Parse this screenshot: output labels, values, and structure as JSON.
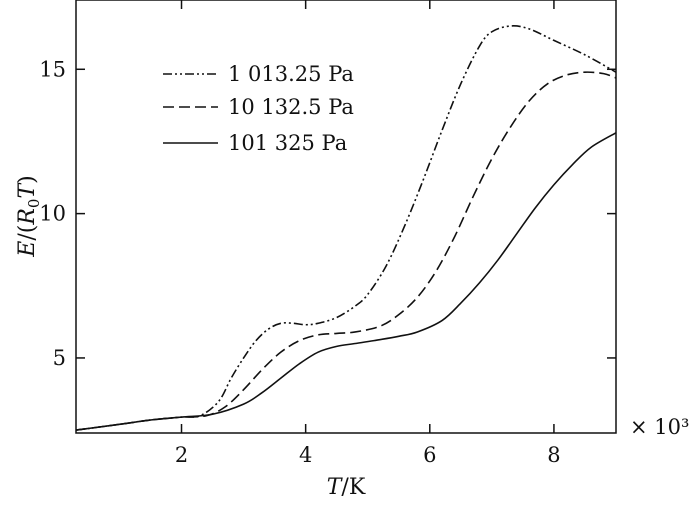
{
  "chart_data": {
    "type": "line",
    "title": "",
    "xlabel": "T/K",
    "ylabel": "E/(R0T)",
    "x_multiplier": "× 10³",
    "xlim": [
      0.3,
      9.0
    ],
    "ylim": [
      2.4,
      17.4
    ],
    "x_ticks": [
      2,
      4,
      6,
      8
    ],
    "x_tick_labels": [
      "2",
      "4",
      "6",
      "8"
    ],
    "y_ticks": [
      5,
      10,
      15
    ],
    "y_tick_labels": [
      "5",
      "10",
      "15"
    ],
    "grid": false,
    "legend_position": "top-left",
    "series": [
      {
        "name": "1 013.25 Pa",
        "style": "dash-dot-dot",
        "x": [
          0.3,
          1.0,
          1.5,
          2.0,
          2.3,
          2.6,
          2.8,
          3.0,
          3.2,
          3.4,
          3.6,
          3.8,
          4.0,
          4.2,
          4.5,
          4.8,
          5.0,
          5.3,
          5.6,
          5.9,
          6.2,
          6.5,
          6.8,
          7.0,
          7.3,
          7.6,
          8.0,
          8.5,
          9.0
        ],
        "y": [
          2.5,
          2.7,
          2.85,
          2.95,
          3.0,
          3.5,
          4.3,
          5.0,
          5.6,
          6.0,
          6.2,
          6.2,
          6.15,
          6.2,
          6.4,
          6.8,
          7.2,
          8.2,
          9.6,
          11.2,
          12.9,
          14.5,
          15.8,
          16.3,
          16.5,
          16.4,
          16.0,
          15.5,
          14.9
        ]
      },
      {
        "name": "10 132.5 Pa",
        "style": "dashed",
        "x": [
          0.3,
          1.0,
          1.5,
          2.0,
          2.4,
          2.7,
          3.0,
          3.3,
          3.6,
          3.9,
          4.2,
          4.5,
          4.8,
          5.2,
          5.5,
          5.8,
          6.1,
          6.4,
          6.7,
          7.0,
          7.3,
          7.6,
          7.9,
          8.2,
          8.5,
          8.8,
          9.0
        ],
        "y": [
          2.5,
          2.7,
          2.85,
          2.95,
          3.0,
          3.3,
          3.9,
          4.6,
          5.2,
          5.6,
          5.8,
          5.85,
          5.9,
          6.1,
          6.5,
          7.1,
          8.0,
          9.2,
          10.6,
          11.9,
          13.0,
          13.9,
          14.5,
          14.8,
          14.9,
          14.85,
          14.7
        ]
      },
      {
        "name": "101 325 Pa",
        "style": "solid",
        "x": [
          0.3,
          1.0,
          1.5,
          2.0,
          2.5,
          3.0,
          3.3,
          3.6,
          3.9,
          4.2,
          4.5,
          4.8,
          5.1,
          5.5,
          5.8,
          6.2,
          6.5,
          6.8,
          7.1,
          7.4,
          7.7,
          8.0,
          8.3,
          8.6,
          9.0
        ],
        "y": [
          2.5,
          2.7,
          2.85,
          2.95,
          3.05,
          3.4,
          3.8,
          4.3,
          4.8,
          5.2,
          5.4,
          5.5,
          5.6,
          5.75,
          5.9,
          6.3,
          6.9,
          7.6,
          8.4,
          9.3,
          10.2,
          11.0,
          11.7,
          12.3,
          12.8
        ]
      }
    ]
  },
  "colors": {
    "ink": "#111111",
    "background": "#ffffff"
  }
}
